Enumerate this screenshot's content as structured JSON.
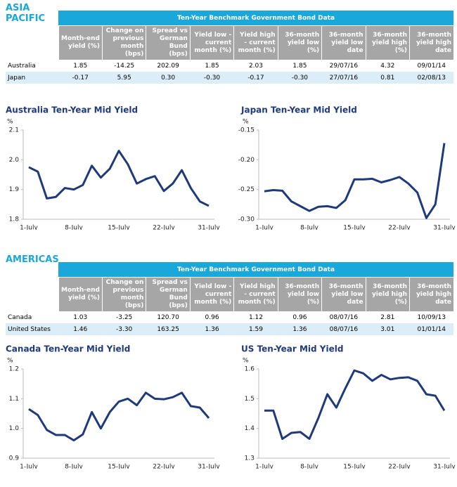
{
  "sections": [
    {
      "region": "ASIA PACIFIC",
      "table": {
        "title": "Ten-Year Benchmark Government Bond Data",
        "headers": [
          "Month-end yield (%)",
          "Change on previous month (bps)",
          "Spread vs German Bund (bps)",
          "Yield low - current month (%)",
          "Yield high - current month (%)",
          "36-month yield low (%)",
          "36-month yield low date",
          "36-month yield high (%)",
          "36-month yield high date"
        ],
        "rows": [
          [
            "Australia",
            "1.85",
            "-14.25",
            "202.09",
            "1.85",
            "2.03",
            "1.85",
            "29/07/16",
            "4.32",
            "09/01/14"
          ],
          [
            "Japan",
            "-0.17",
            "5.95",
            "0.30",
            "-0.30",
            "-0.17",
            "-0.30",
            "27/07/16",
            "0.81",
            "02/08/13"
          ]
        ]
      }
    },
    {
      "region": "AMERICAS",
      "table": {
        "title": "Ten-Year Benchmark Government Bond Data",
        "headers": [
          "Month-end yield (%)",
          "Change on previous month (bps)",
          "Spread vs German Bund (bps)",
          "Yield low - current month (%)",
          "Yield high - current month (%)",
          "36-month yield low (%)",
          "36-month yield low date",
          "36-month yield high (%)",
          "36-month yield high date"
        ],
        "rows": [
          [
            "Canada",
            "1.03",
            "-3.25",
            "120.70",
            "0.96",
            "1.12",
            "0.96",
            "08/07/16",
            "2.81",
            "10/09/13"
          ],
          [
            "United States",
            "1.46",
            "-3.30",
            "163.25",
            "1.36",
            "1.59",
            "1.36",
            "08/07/16",
            "3.01",
            "01/01/14"
          ]
        ]
      }
    }
  ],
  "chart_data": [
    {
      "type": "line",
      "title": "Australia Ten-Year Mid Yield",
      "y_label": "%",
      "categories": [
        "1-July",
        null,
        null,
        null,
        null,
        "8-July",
        null,
        null,
        null,
        null,
        "15-July",
        null,
        null,
        null,
        null,
        "22-July",
        null,
        null,
        null,
        null,
        "31-July"
      ],
      "color": "#1f3a7a",
      "values": [
        1.975,
        1.96,
        1.87,
        1.875,
        1.905,
        1.9,
        1.915,
        1.98,
        1.94,
        1.97,
        2.03,
        1.985,
        1.92,
        1.935,
        1.945,
        1.895,
        1.92,
        1.965,
        1.905,
        1.86,
        1.845
      ],
      "ylim": [
        1.8,
        2.1
      ],
      "yticks": [
        1.8,
        1.9,
        {
          "value": 2,
          "label": "2.0"
        },
        2.1
      ]
    },
    {
      "type": "line",
      "title": "Japan Ten-Year Mid Yield",
      "y_label": "%",
      "categories": [
        "1-July",
        null,
        null,
        null,
        null,
        "8-July",
        null,
        null,
        null,
        null,
        "15-July",
        null,
        null,
        null,
        null,
        "22-July",
        null,
        null,
        null,
        null,
        "31-July"
      ],
      "color": "#1f3a7a",
      "values": [
        -0.253,
        -0.251,
        -0.252,
        -0.27,
        -0.278,
        -0.286,
        -0.279,
        -0.278,
        -0.281,
        -0.268,
        -0.233,
        -0.233,
        -0.232,
        -0.238,
        -0.234,
        -0.229,
        -0.24,
        -0.255,
        -0.298,
        -0.275,
        -0.172
      ],
      "ylim": [
        -0.3,
        -0.15
      ],
      "yticks": [
        {
          "value": -0.3,
          "label": "-0.30"
        },
        -0.25,
        {
          "value": -0.2,
          "label": "-0.20"
        },
        -0.15
      ]
    },
    {
      "type": "line",
      "title": "Canada Ten-Year Mid Yield",
      "y_label": "%",
      "categories": [
        "1-July",
        null,
        null,
        null,
        null,
        "8-July",
        null,
        null,
        null,
        null,
        "15-July",
        null,
        null,
        null,
        null,
        "22-July",
        null,
        null,
        null,
        null,
        "31-July"
      ],
      "color": "#1f3a7a",
      "values": [
        1.065,
        1.045,
        0.995,
        0.978,
        0.978,
        0.96,
        0.98,
        1.055,
        1.0,
        1.055,
        1.09,
        1.1,
        1.078,
        1.12,
        1.1,
        1.098,
        1.105,
        1.12,
        1.075,
        1.07,
        1.035
      ],
      "ylim": [
        0.9,
        1.2
      ],
      "yticks": [
        0.9,
        {
          "value": 1,
          "label": "1.0"
        },
        1.1,
        1.2
      ]
    },
    {
      "type": "line",
      "title": "US Ten-Year Mid Yield",
      "y_label": "%",
      "categories": [
        "1-July",
        null,
        null,
        null,
        null,
        "8-July",
        null,
        null,
        null,
        null,
        "15-July",
        null,
        null,
        null,
        null,
        "22-July",
        null,
        null,
        null,
        null,
        "31-July"
      ],
      "color": "#1f3a7a",
      "values": [
        1.46,
        1.46,
        1.365,
        1.385,
        1.388,
        1.365,
        1.435,
        1.515,
        1.47,
        1.535,
        1.595,
        1.585,
        1.56,
        1.58,
        1.565,
        1.57,
        1.572,
        1.56,
        1.515,
        1.51,
        1.46
      ],
      "ylim": [
        1.3,
        1.6
      ],
      "yticks": [
        1.3,
        1.4,
        1.5,
        1.6
      ]
    }
  ]
}
